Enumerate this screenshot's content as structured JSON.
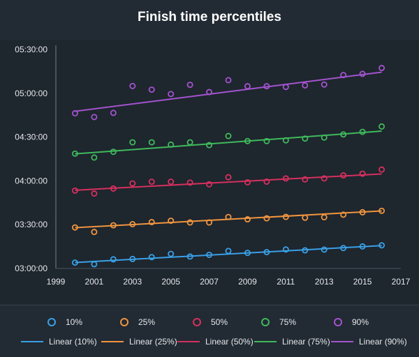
{
  "chart_data": {
    "type": "scatter",
    "title": "Finish time percentiles",
    "xlabel": "",
    "ylabel": "",
    "xlim": [
      1999,
      2017
    ],
    "ylim_seconds": [
      10800,
      19800
    ],
    "x_ticks": [
      "1999",
      "2001",
      "2003",
      "2005",
      "2007",
      "2009",
      "2011",
      "2013",
      "2015",
      "2017"
    ],
    "y_ticks": [
      "03:00:00",
      "03:30:00",
      "04:00:00",
      "04:30:00",
      "05:00:00",
      "05:30:00"
    ],
    "y_tick_values_seconds": [
      10800,
      12600,
      14400,
      16200,
      18000,
      19800
    ],
    "grid": false,
    "legend_position": "bottom",
    "x": [
      2000,
      2001,
      2002,
      2003,
      2004,
      2005,
      2006,
      2007,
      2008,
      2009,
      2010,
      2011,
      2012,
      2013,
      2014,
      2015,
      2016
    ],
    "series": [
      {
        "name": "10%",
        "color": "#3aa0e6",
        "values_hms": [
          "03:04:00",
          "03:02:55",
          "03:06:15",
          "03:06:30",
          "03:07:45",
          "03:10:00",
          "03:08:10",
          "03:09:20",
          "03:12:00",
          "03:10:40",
          "03:11:10",
          "03:13:00",
          "03:12:25",
          "03:12:55",
          "03:14:00",
          "03:15:05",
          "03:15:50"
        ],
        "trend_hms": [
          "03:04:05",
          "03:15:40"
        ],
        "trend_name": "Linear (10%)"
      },
      {
        "name": "25%",
        "color": "#f0953f",
        "values_hms": [
          "03:28:05",
          "03:25:00",
          "03:29:35",
          "03:30:20",
          "03:31:45",
          "03:32:40",
          "03:31:30",
          "03:31:30",
          "03:35:15",
          "03:33:40",
          "03:34:20",
          "03:35:20",
          "03:34:45",
          "03:35:05",
          "03:36:50",
          "03:38:30",
          "03:39:30"
        ],
        "trend_hms": [
          "03:27:55",
          "03:39:25"
        ],
        "trend_name": "Linear (25%)"
      },
      {
        "name": "50%",
        "color": "#d6305e",
        "values_hms": [
          "03:53:20",
          "03:51:20",
          "03:54:45",
          "03:58:15",
          "03:59:25",
          "03:59:25",
          "03:58:50",
          "03:57:40",
          "04:02:30",
          "03:59:00",
          "03:59:30",
          "04:01:40",
          "04:01:00",
          "04:01:40",
          "04:03:45",
          "04:04:55",
          "04:07:45"
        ],
        "trend_hms": [
          "03:53:35",
          "04:04:45"
        ],
        "trend_name": "Linear (50%)"
      },
      {
        "name": "75%",
        "color": "#3fba5b",
        "values_hms": [
          "04:18:40",
          "04:16:00",
          "04:19:55",
          "04:26:25",
          "04:26:25",
          "04:24:50",
          "04:26:25",
          "04:24:30",
          "04:30:45",
          "04:27:15",
          "04:27:15",
          "04:27:45",
          "04:29:00",
          "04:29:40",
          "04:31:50",
          "04:33:35",
          "04:37:15"
        ],
        "trend_hms": [
          "04:18:30",
          "04:34:05"
        ],
        "trend_name": "Linear (75%)"
      },
      {
        "name": "90%",
        "color": "#a353cf",
        "values_hms": [
          "04:46:20",
          "04:43:45",
          "04:46:35",
          "05:05:00",
          "05:02:30",
          "04:59:30",
          "05:05:50",
          "05:00:50",
          "05:09:00",
          "05:04:50",
          "05:04:50",
          "05:04:20",
          "05:05:25",
          "05:06:00",
          "05:12:30",
          "05:13:20",
          "05:17:20"
        ],
        "trend_hms": [
          "04:47:40",
          "05:14:30"
        ],
        "trend_name": "Linear (90%)"
      }
    ]
  },
  "legend": {
    "markers": [
      "10%",
      "25%",
      "50%",
      "75%",
      "90%"
    ],
    "lines": [
      "Linear (10%)",
      "Linear (25%)",
      "Linear (50%)",
      "Linear (75%)",
      "Linear (90%)"
    ]
  }
}
